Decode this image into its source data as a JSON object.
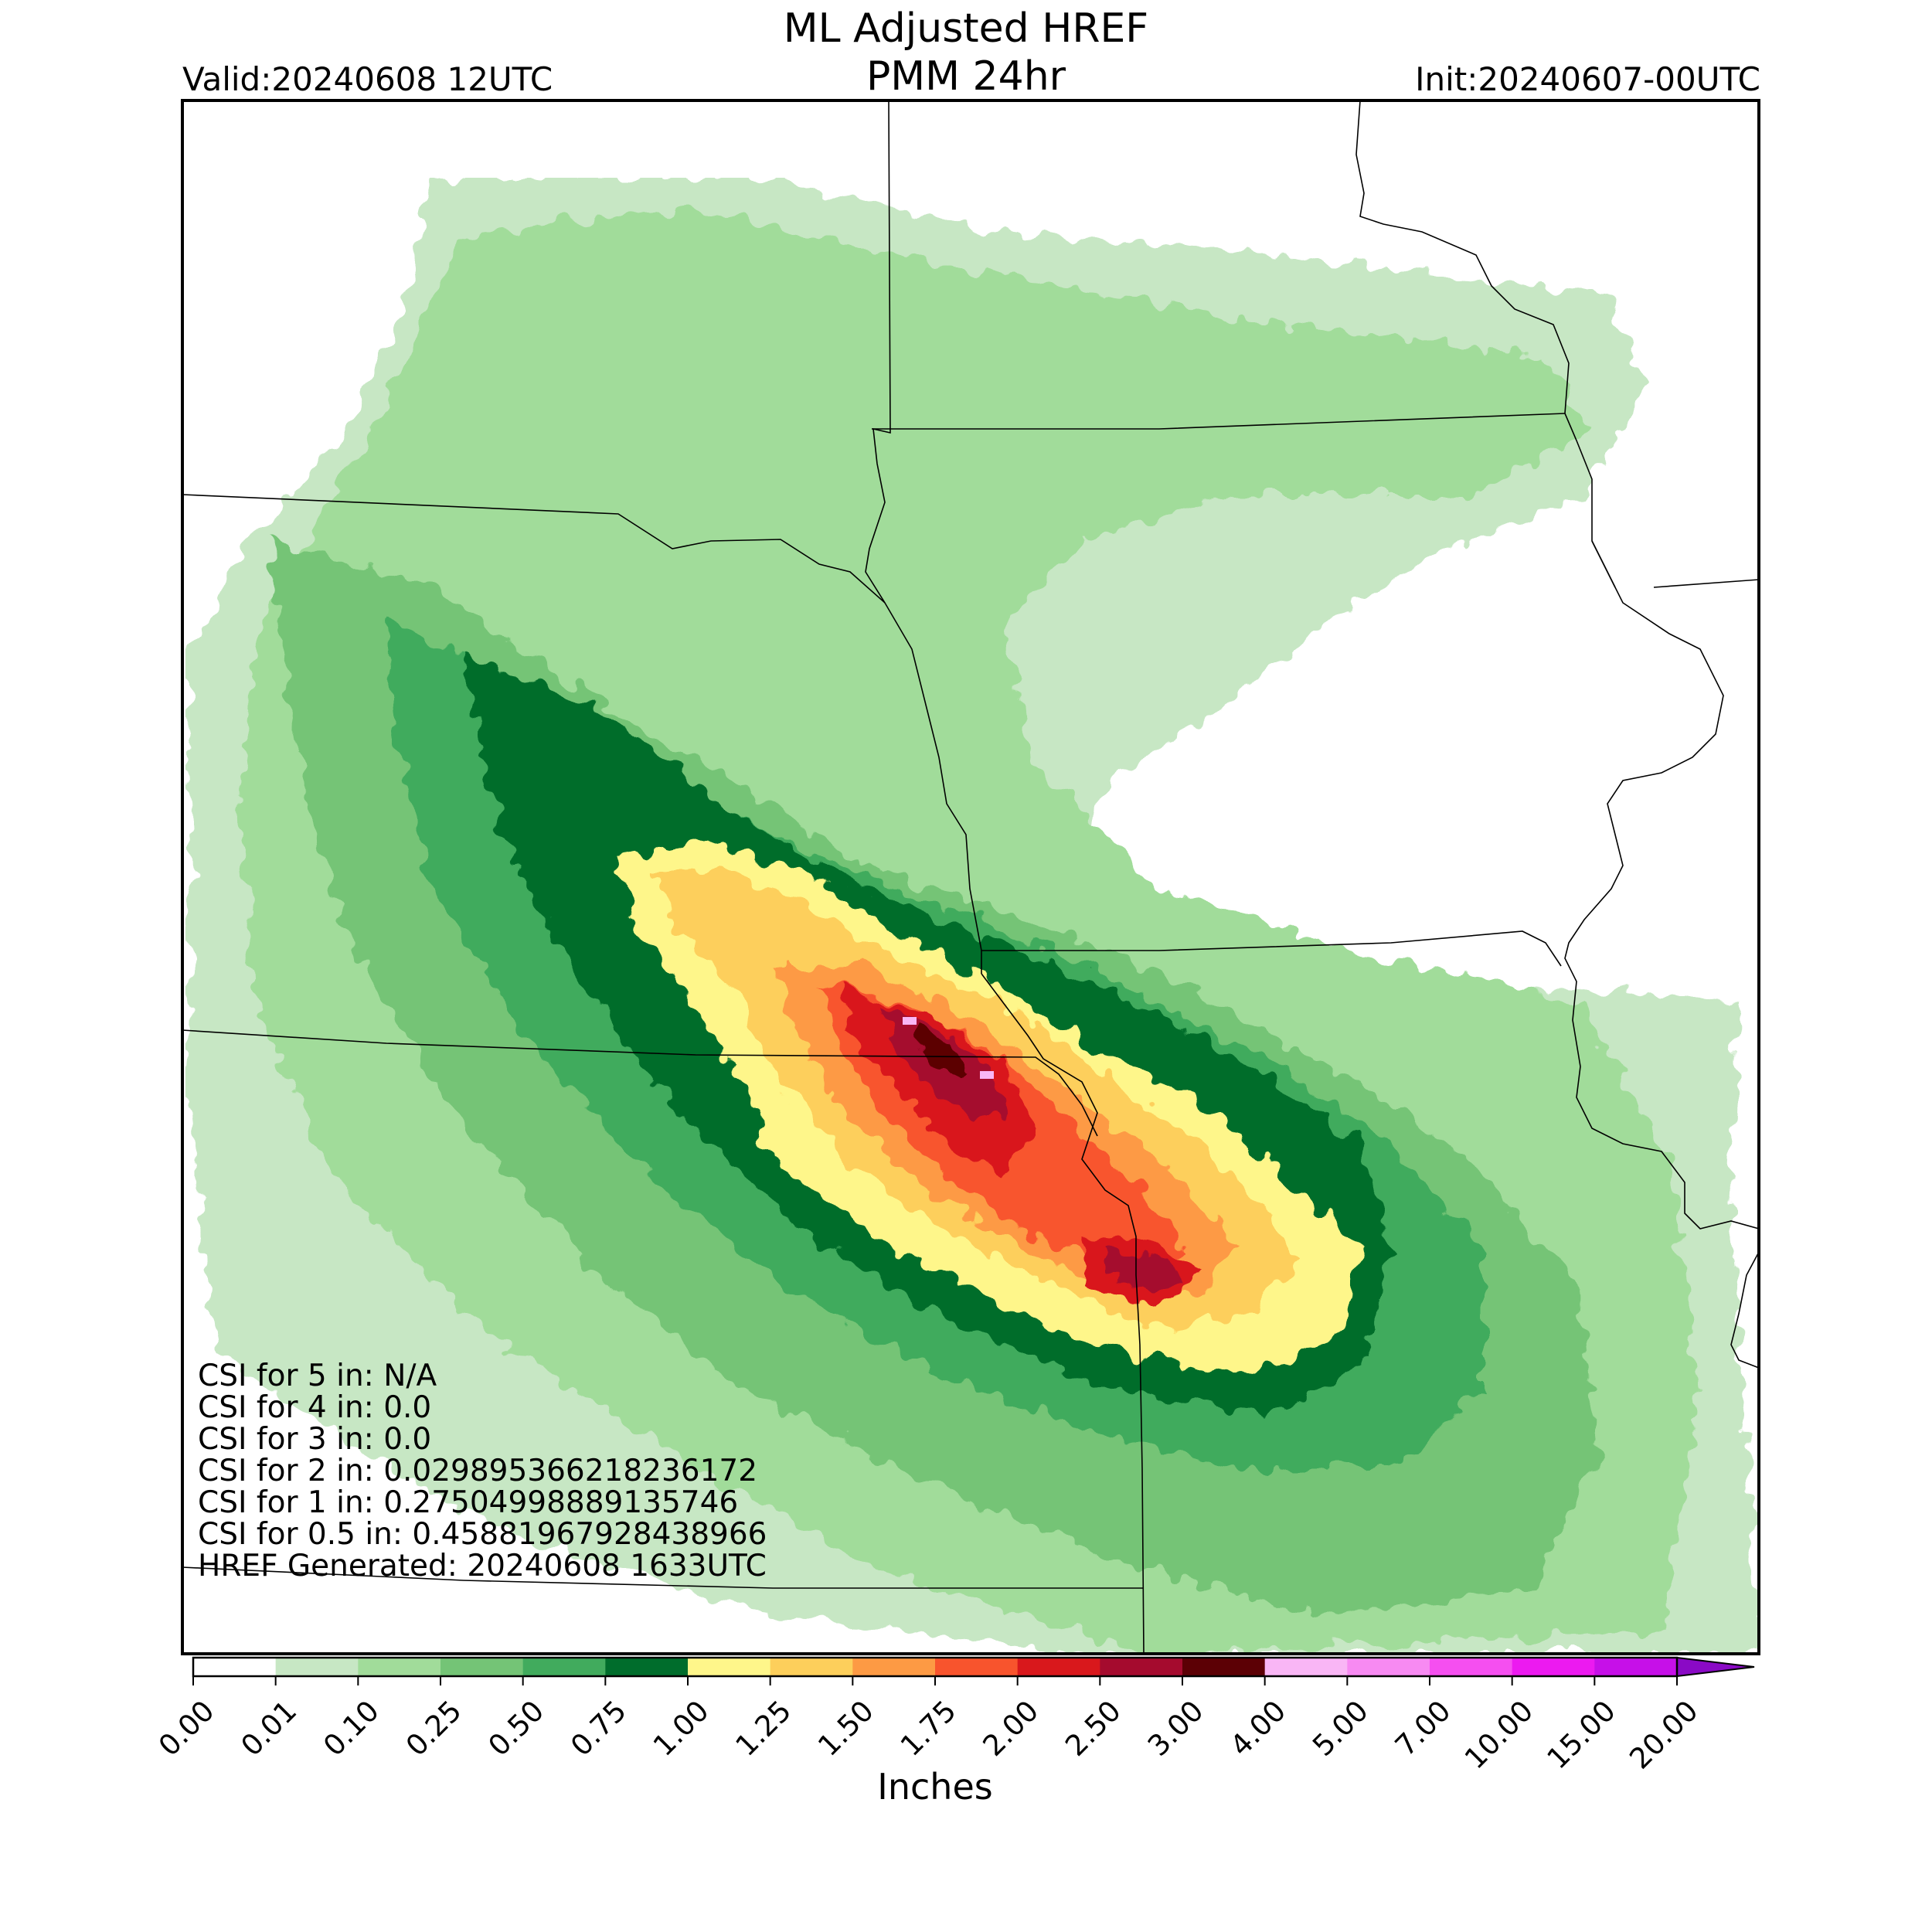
{
  "header": {
    "title_line1": "ML Adjusted HREF",
    "title_line2": "PMM 24hr",
    "valid": "Valid:20240608 12UTC",
    "init": "Init:20240607-00UTC"
  },
  "stats": {
    "csi_5": "CSI for 5 in: N/A",
    "csi_4": "CSI for 4 in: 0.0",
    "csi_3": "CSI for 3 in: 0.0",
    "csi_2": "CSI for 2 in: 0.029895366218236172",
    "csi_1": "CSI for 1 in: 0.27504998889135746",
    "csi_05": "CSI for 0.5 in: 0.45881967928438966",
    "generated": "HREF Generated: 20240608 1633UTC"
  },
  "colorbar": {
    "title": "Inches",
    "ticks": [
      "0.00",
      "0.01",
      "0.10",
      "0.25",
      "0.50",
      "0.75",
      "1.00",
      "1.25",
      "1.50",
      "1.75",
      "2.00",
      "2.50",
      "3.00",
      "4.00",
      "5.00",
      "7.00",
      "10.00",
      "15.00",
      "20.00"
    ],
    "colors": [
      "#ffffff",
      "#c7e7c4",
      "#a1dc9a",
      "#74c476",
      "#41ab5d",
      "#006d2c",
      "#fef68a",
      "#fdcf5b",
      "#fd9a44",
      "#f8542d",
      "#d9181c",
      "#a50b2e",
      "#5c0005",
      "#f9b6f5",
      "#f78af2",
      "#f54ff0",
      "#ec1af0",
      "#c610e8",
      "#8a0ac5"
    ]
  },
  "map": {
    "precip_legend_levels": [
      "0.01",
      "0.10",
      "0.25",
      "0.50",
      "0.75",
      "1.00",
      "1.25",
      "1.50",
      "1.75",
      "2.00",
      "2.50",
      "3.00",
      "4.00"
    ]
  }
}
